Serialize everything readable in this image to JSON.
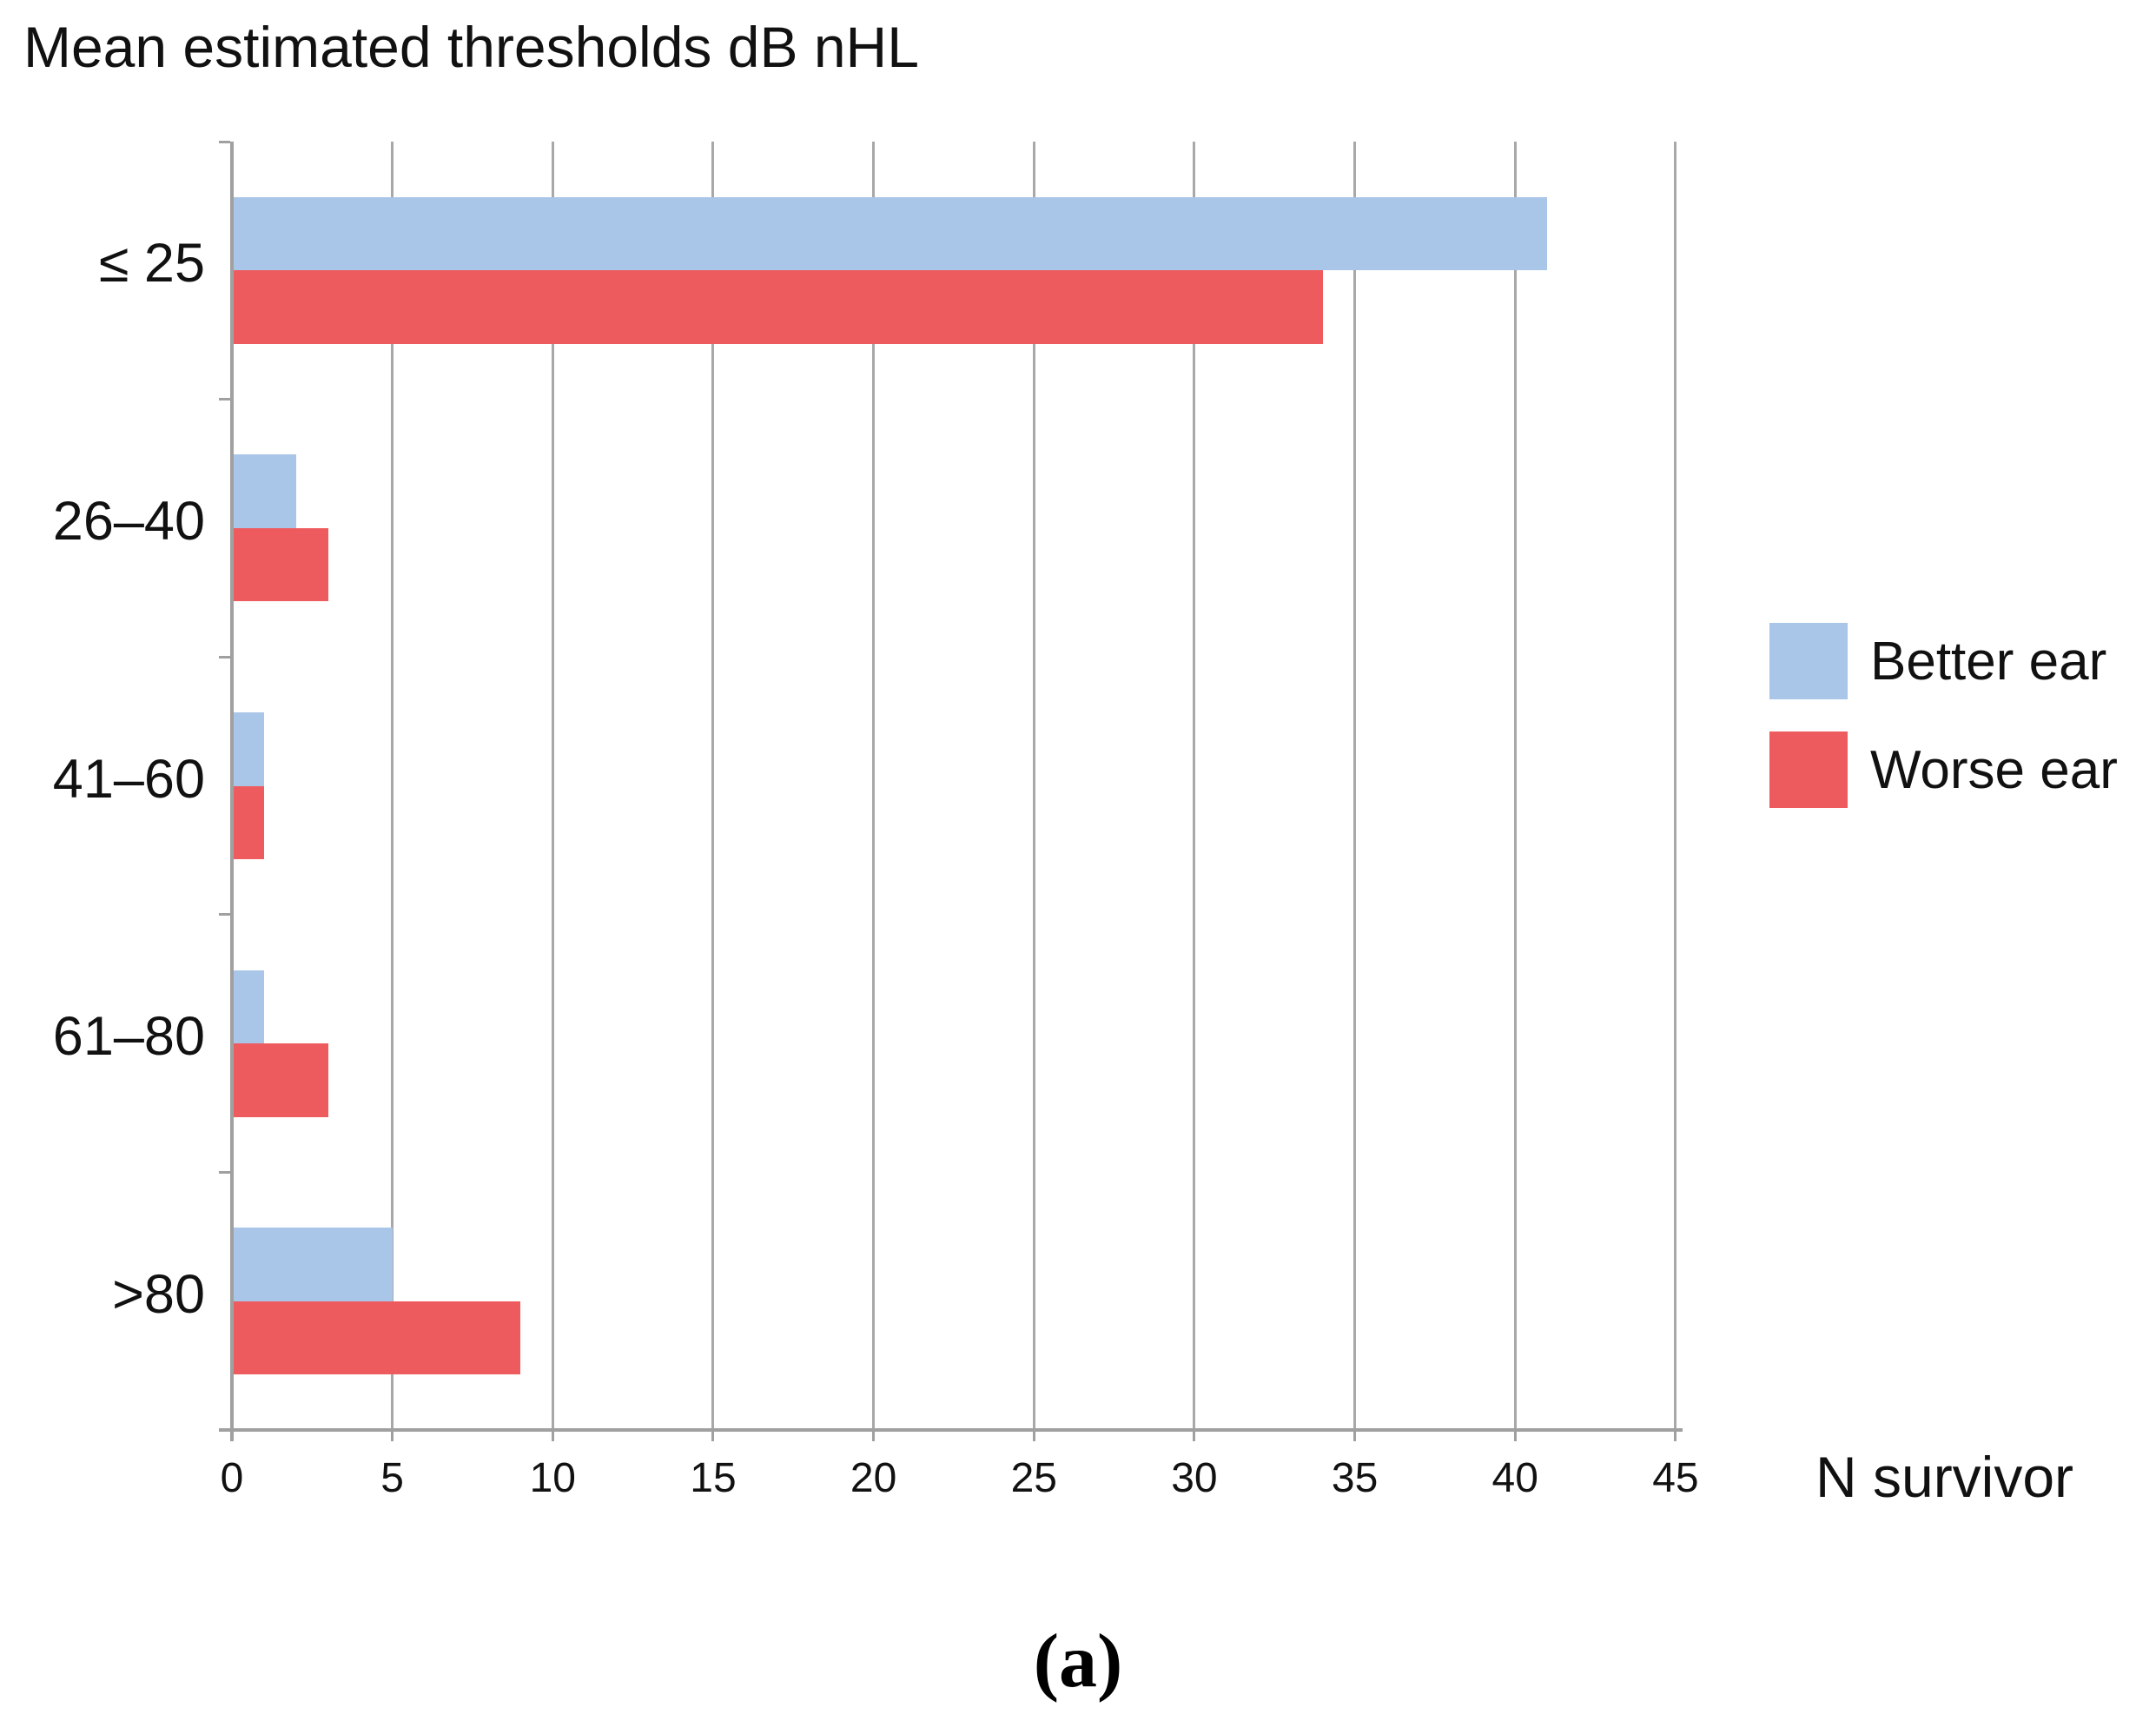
{
  "title": "Mean estimated thresholds dB nHL",
  "caption": "(a)",
  "x_axis": {
    "label": "N survivor",
    "tick_labels": [
      "0",
      "5",
      "10",
      "15",
      "20",
      "25",
      "30",
      "35",
      "40",
      "45"
    ]
  },
  "legend": {
    "items": [
      {
        "label": "Better ear",
        "color": "#a9c6e8"
      },
      {
        "label": "Worse ear",
        "color": "#ee5b5e"
      }
    ]
  },
  "chart_data": {
    "type": "bar",
    "orientation": "horizontal",
    "title": "Mean estimated thresholds dB nHL",
    "xlabel": "N survivor",
    "ylabel": "Mean estimated thresholds dB nHL",
    "categories": [
      "≤ 25",
      "26–40",
      "41–60",
      "61–80",
      ">80"
    ],
    "series": [
      {
        "name": "Better ear",
        "color": "#a9c6e8",
        "values": [
          41,
          2,
          1,
          1,
          5
        ]
      },
      {
        "name": "Worse ear",
        "color": "#ee5b5e",
        "values": [
          34,
          3,
          1,
          3,
          9
        ]
      }
    ],
    "xlim": [
      0,
      45
    ],
    "x_ticks": [
      0,
      5,
      10,
      15,
      20,
      25,
      30,
      35,
      40,
      45
    ],
    "grid": true,
    "legend_position": "right"
  },
  "colors": {
    "better_ear": "#a9c6e8",
    "worse_ear": "#ee5b5e",
    "gridline": "#a8a8a8",
    "axis": "#a0a0a0",
    "text": "#111111"
  }
}
